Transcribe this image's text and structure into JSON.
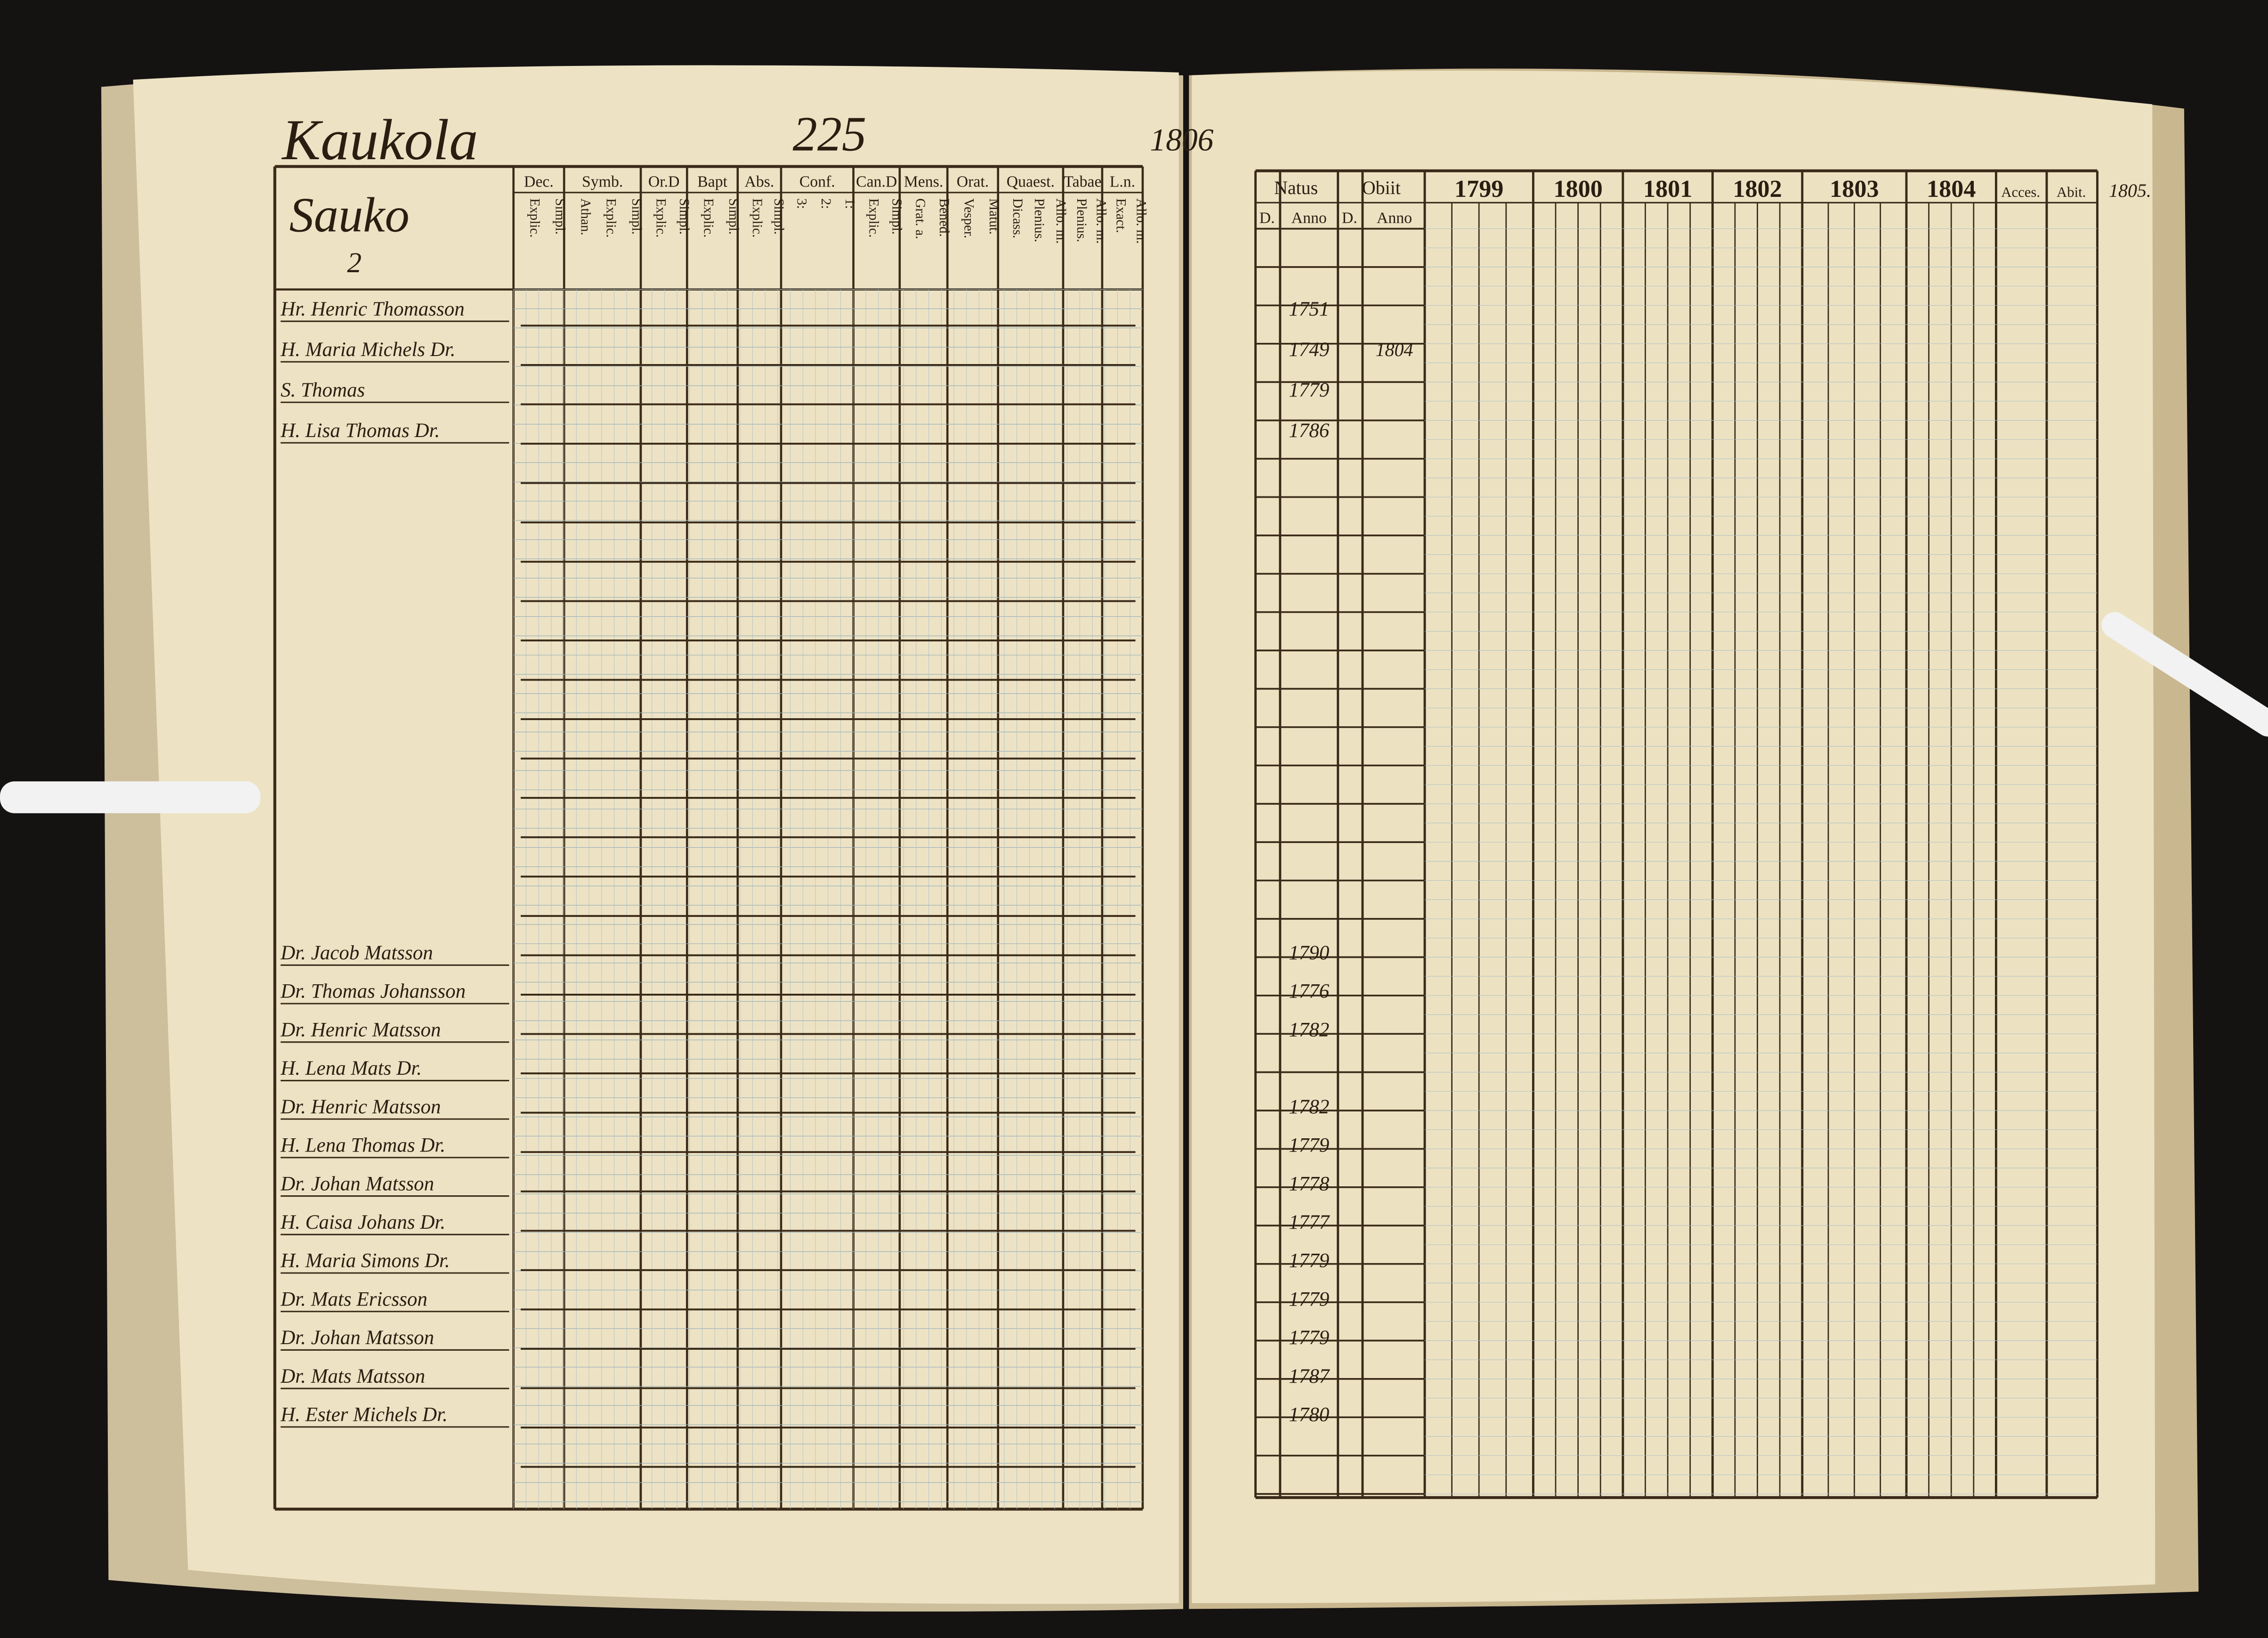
{
  "left_page": {
    "parish": "Kaukola",
    "page_number": "225",
    "village": "Sauko",
    "household": "2",
    "columns": [
      {
        "label": "Dec.",
        "sub": [
          "Explic.",
          "Simpl."
        ]
      },
      {
        "label": "Symb.",
        "sub": [
          "Athan.",
          "Explic.",
          "Simpl."
        ]
      },
      {
        "label": "Or.D",
        "sub": [
          "Explic.",
          "Simpl."
        ]
      },
      {
        "label": "Bapt",
        "sub": [
          "Explic.",
          "Simpl."
        ]
      },
      {
        "label": "Abs.",
        "sub": [
          "Explic.",
          "Simpl."
        ]
      },
      {
        "label": "Conf.",
        "sub": [
          "3:",
          "2:",
          "1:"
        ]
      },
      {
        "label": "Can.D",
        "sub": [
          "Explic.",
          "Simpl."
        ]
      },
      {
        "label": "Mens.",
        "sub": [
          "Grat. a.",
          "Bened."
        ]
      },
      {
        "label": "Orat.",
        "sub": [
          "Vesper.",
          "Matut."
        ]
      },
      {
        "label": "Quaest.",
        "sub": [
          "Dicass.",
          "Plenius.",
          "Allo. m."
        ]
      },
      {
        "label": "Tabae",
        "sub": [
          "Plenius.",
          "Allo. m."
        ]
      },
      {
        "label": "L.n.",
        "sub": [
          "Exact.",
          "Allo. m."
        ]
      }
    ]
  },
  "right_page": {
    "page_number": "1806",
    "headers": {
      "born": "Natus",
      "died": "Obiit",
      "day": "D.",
      "year": "Anno",
      "years": [
        "1799",
        "1800",
        "1801",
        "1802",
        "1803",
        "1804"
      ],
      "accessit": "Acces.",
      "abit": "Abit.",
      "next_year": "1805."
    }
  },
  "rows": [
    {
      "name": "Hr. Henric Thomasson",
      "born": "1751"
    },
    {
      "name": "H. Maria Michels Dr.",
      "born": "1749",
      "died": "1804"
    },
    {
      "name": "S. Thomas",
      "born": "1779"
    },
    {
      "name": "H. Lisa Thomas Dr.",
      "born": "1786"
    },
    {
      "name": "Dr. Jacob Matsson",
      "born": "1790"
    },
    {
      "name": "Dr. Thomas Johansson",
      "born": "1776"
    },
    {
      "name": "Dr. Henric Matsson",
      "born": "1782"
    },
    {
      "name": "H. Lena Mats Dr."
    },
    {
      "name": "Dr. Henric Matsson",
      "born": "1782"
    },
    {
      "name": "H. Lena Thomas Dr.",
      "born": "1779"
    },
    {
      "name": "Dr. Johan Matsson",
      "born": "1778"
    },
    {
      "name": "H. Caisa Johans Dr.",
      "born": "1777"
    },
    {
      "name": "H. Maria Simons Dr.",
      "born": "1779"
    },
    {
      "name": "Dr. Mats Ericsson",
      "born": "1779"
    },
    {
      "name": "Dr. Johan Matsson",
      "born": "1779"
    },
    {
      "name": "Dr. Mats Matsson",
      "born": "1787"
    },
    {
      "name": "H. Ester Michels Dr.",
      "born": "1780"
    }
  ]
}
